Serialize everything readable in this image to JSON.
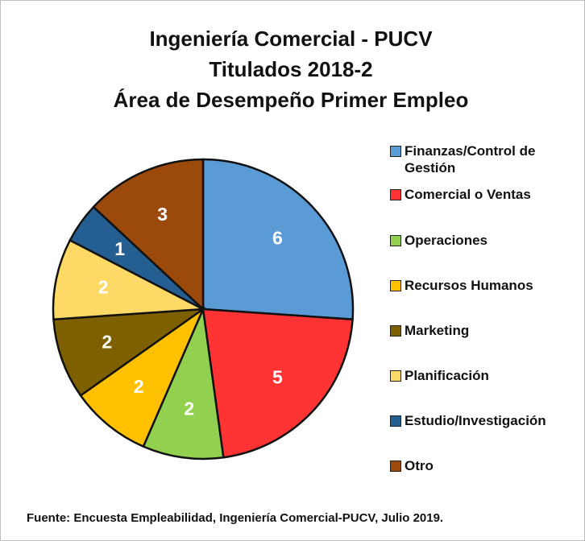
{
  "chart_data": {
    "type": "pie",
    "title": [
      "Ingeniería Comercial - PUCV",
      "Titulados 2018-2",
      "Área de Desempeño Primer Empleo"
    ],
    "categories": [
      "Finanzas/Control de Gestión",
      "Comercial o Ventas",
      "Operaciones",
      "Recursos Humanos",
      "Marketing",
      "Planificación",
      "Estudio/Investigación",
      "Otro"
    ],
    "values": [
      6,
      5,
      2,
      2,
      2,
      2,
      1,
      3
    ],
    "colors": [
      "#5b9bd5",
      "#ff3333",
      "#92d050",
      "#ffc000",
      "#7f6000",
      "#ffd966",
      "#255e91",
      "#9c4a0c"
    ],
    "source": "Fuente: Encuesta Empleabilidad, Ingeniería Comercial-PUCV, Julio  2019."
  }
}
